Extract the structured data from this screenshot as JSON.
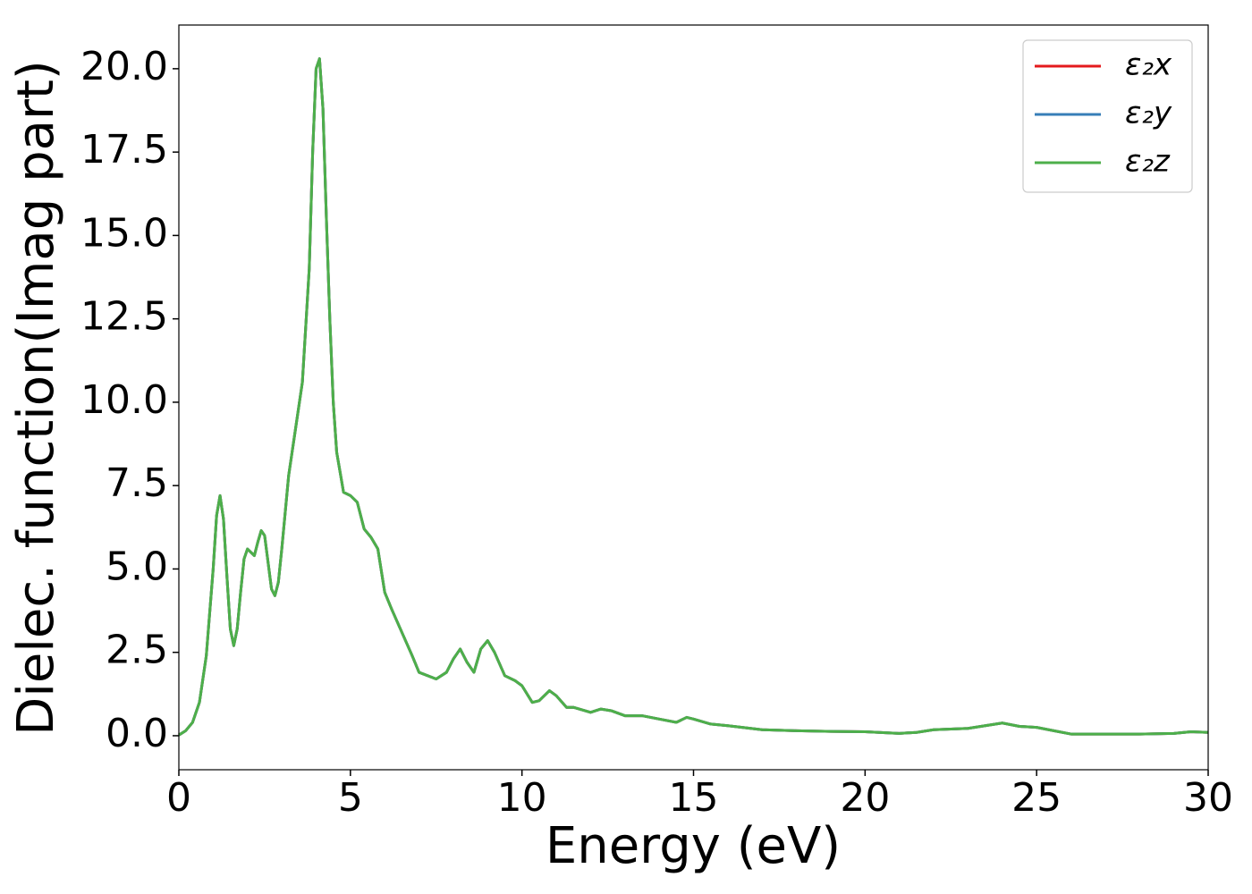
{
  "chart_data": {
    "type": "line",
    "xlabel": "Energy (eV)",
    "ylabel": "Dielec. function(Imag part)",
    "x": [
      0,
      0.2,
      0.4,
      0.6,
      0.8,
      1.0,
      1.1,
      1.2,
      1.3,
      1.4,
      1.5,
      1.6,
      1.7,
      1.8,
      1.9,
      2.0,
      2.1,
      2.2,
      2.3,
      2.4,
      2.5,
      2.6,
      2.7,
      2.8,
      2.9,
      3.0,
      3.2,
      3.4,
      3.6,
      3.8,
      3.9,
      4.0,
      4.1,
      4.2,
      4.3,
      4.4,
      4.5,
      4.6,
      4.8,
      5.0,
      5.2,
      5.4,
      5.6,
      5.8,
      6.0,
      6.2,
      6.5,
      6.8,
      7.0,
      7.5,
      7.8,
      8.0,
      8.2,
      8.4,
      8.6,
      8.8,
      9.0,
      9.2,
      9.5,
      9.8,
      10.0,
      10.3,
      10.5,
      10.8,
      11.0,
      11.3,
      11.5,
      12.0,
      12.3,
      12.6,
      13.0,
      13.5,
      14.0,
      14.5,
      14.8,
      15.0,
      15.5,
      16.0,
      17.0,
      18.0,
      19.0,
      20.0,
      21.0,
      21.5,
      22.0,
      22.5,
      23.0,
      23.5,
      24.0,
      24.5,
      25.0,
      25.5,
      26.0,
      27.0,
      28.0,
      29.0,
      29.5,
      30.0
    ],
    "series": [
      {
        "name": "ε₂x",
        "color": "#e41a1c",
        "values": [
          0.02,
          0.15,
          0.4,
          1.0,
          2.4,
          5.0,
          6.6,
          7.2,
          6.5,
          4.8,
          3.2,
          2.7,
          3.2,
          4.3,
          5.3,
          5.6,
          5.5,
          5.4,
          5.8,
          6.15,
          6.0,
          5.2,
          4.4,
          4.2,
          4.6,
          5.6,
          7.8,
          9.2,
          10.6,
          14.0,
          17.5,
          20.0,
          20.3,
          18.8,
          15.5,
          12.5,
          10.0,
          8.5,
          7.3,
          7.2,
          7.0,
          6.2,
          5.95,
          5.6,
          4.3,
          3.8,
          3.1,
          2.4,
          1.9,
          1.7,
          1.9,
          2.3,
          2.6,
          2.2,
          1.9,
          2.6,
          2.85,
          2.5,
          1.8,
          1.65,
          1.5,
          1.0,
          1.05,
          1.35,
          1.2,
          0.85,
          0.85,
          0.7,
          0.8,
          0.75,
          0.6,
          0.6,
          0.5,
          0.4,
          0.55,
          0.5,
          0.35,
          0.3,
          0.18,
          0.15,
          0.13,
          0.12,
          0.07,
          0.1,
          0.18,
          0.2,
          0.22,
          0.3,
          0.38,
          0.28,
          0.25,
          0.15,
          0.05,
          0.05,
          0.05,
          0.07,
          0.12,
          0.1
        ]
      },
      {
        "name": "ε₂y",
        "color": "#377eb8",
        "values": [
          0.02,
          0.15,
          0.4,
          1.0,
          2.4,
          5.0,
          6.6,
          7.2,
          6.5,
          4.8,
          3.2,
          2.7,
          3.2,
          4.3,
          5.3,
          5.6,
          5.5,
          5.4,
          5.8,
          6.15,
          6.0,
          5.2,
          4.4,
          4.2,
          4.6,
          5.6,
          7.8,
          9.2,
          10.6,
          14.0,
          17.5,
          20.0,
          20.3,
          18.8,
          15.5,
          12.5,
          10.0,
          8.5,
          7.3,
          7.2,
          7.0,
          6.2,
          5.95,
          5.6,
          4.3,
          3.8,
          3.1,
          2.4,
          1.9,
          1.7,
          1.9,
          2.3,
          2.6,
          2.2,
          1.9,
          2.6,
          2.85,
          2.5,
          1.8,
          1.65,
          1.5,
          1.0,
          1.05,
          1.35,
          1.2,
          0.85,
          0.85,
          0.7,
          0.8,
          0.75,
          0.6,
          0.6,
          0.5,
          0.4,
          0.55,
          0.5,
          0.35,
          0.3,
          0.18,
          0.15,
          0.13,
          0.12,
          0.07,
          0.1,
          0.18,
          0.2,
          0.22,
          0.3,
          0.38,
          0.28,
          0.25,
          0.15,
          0.05,
          0.05,
          0.05,
          0.07,
          0.12,
          0.1
        ]
      },
      {
        "name": "ε₂z",
        "color": "#4daf4a",
        "values": [
          0.02,
          0.15,
          0.4,
          1.0,
          2.4,
          5.0,
          6.6,
          7.2,
          6.5,
          4.8,
          3.2,
          2.7,
          3.2,
          4.3,
          5.3,
          5.6,
          5.5,
          5.4,
          5.8,
          6.15,
          6.0,
          5.2,
          4.4,
          4.2,
          4.6,
          5.6,
          7.8,
          9.2,
          10.6,
          14.0,
          17.5,
          20.0,
          20.3,
          18.8,
          15.5,
          12.5,
          10.0,
          8.5,
          7.3,
          7.2,
          7.0,
          6.2,
          5.95,
          5.6,
          4.3,
          3.8,
          3.1,
          2.4,
          1.9,
          1.7,
          1.9,
          2.3,
          2.6,
          2.2,
          1.9,
          2.6,
          2.85,
          2.5,
          1.8,
          1.65,
          1.5,
          1.0,
          1.05,
          1.35,
          1.2,
          0.85,
          0.85,
          0.7,
          0.8,
          0.75,
          0.6,
          0.6,
          0.5,
          0.4,
          0.55,
          0.5,
          0.35,
          0.3,
          0.18,
          0.15,
          0.13,
          0.12,
          0.07,
          0.1,
          0.18,
          0.2,
          0.22,
          0.3,
          0.38,
          0.28,
          0.25,
          0.15,
          0.05,
          0.05,
          0.05,
          0.07,
          0.12,
          0.1
        ]
      }
    ],
    "xlim": [
      0,
      30
    ],
    "xticks": [
      0,
      5,
      10,
      15,
      20,
      25,
      30
    ],
    "ylim": [
      -1.02,
      21.31
    ],
    "yticks": [
      {
        "value": 0,
        "label": "0.0"
      },
      {
        "value": 2.5,
        "label": "2.5"
      },
      {
        "value": 5,
        "label": "5.0"
      },
      {
        "value": 7.5,
        "label": "7.5"
      },
      {
        "value": 10,
        "label": "10.0"
      },
      {
        "value": 12.5,
        "label": "12.5"
      },
      {
        "value": 15,
        "label": "15.0"
      },
      {
        "value": 17.5,
        "label": "17.5"
      },
      {
        "value": 20,
        "label": "20.0"
      }
    ],
    "legend": "upper right",
    "grid": false
  }
}
